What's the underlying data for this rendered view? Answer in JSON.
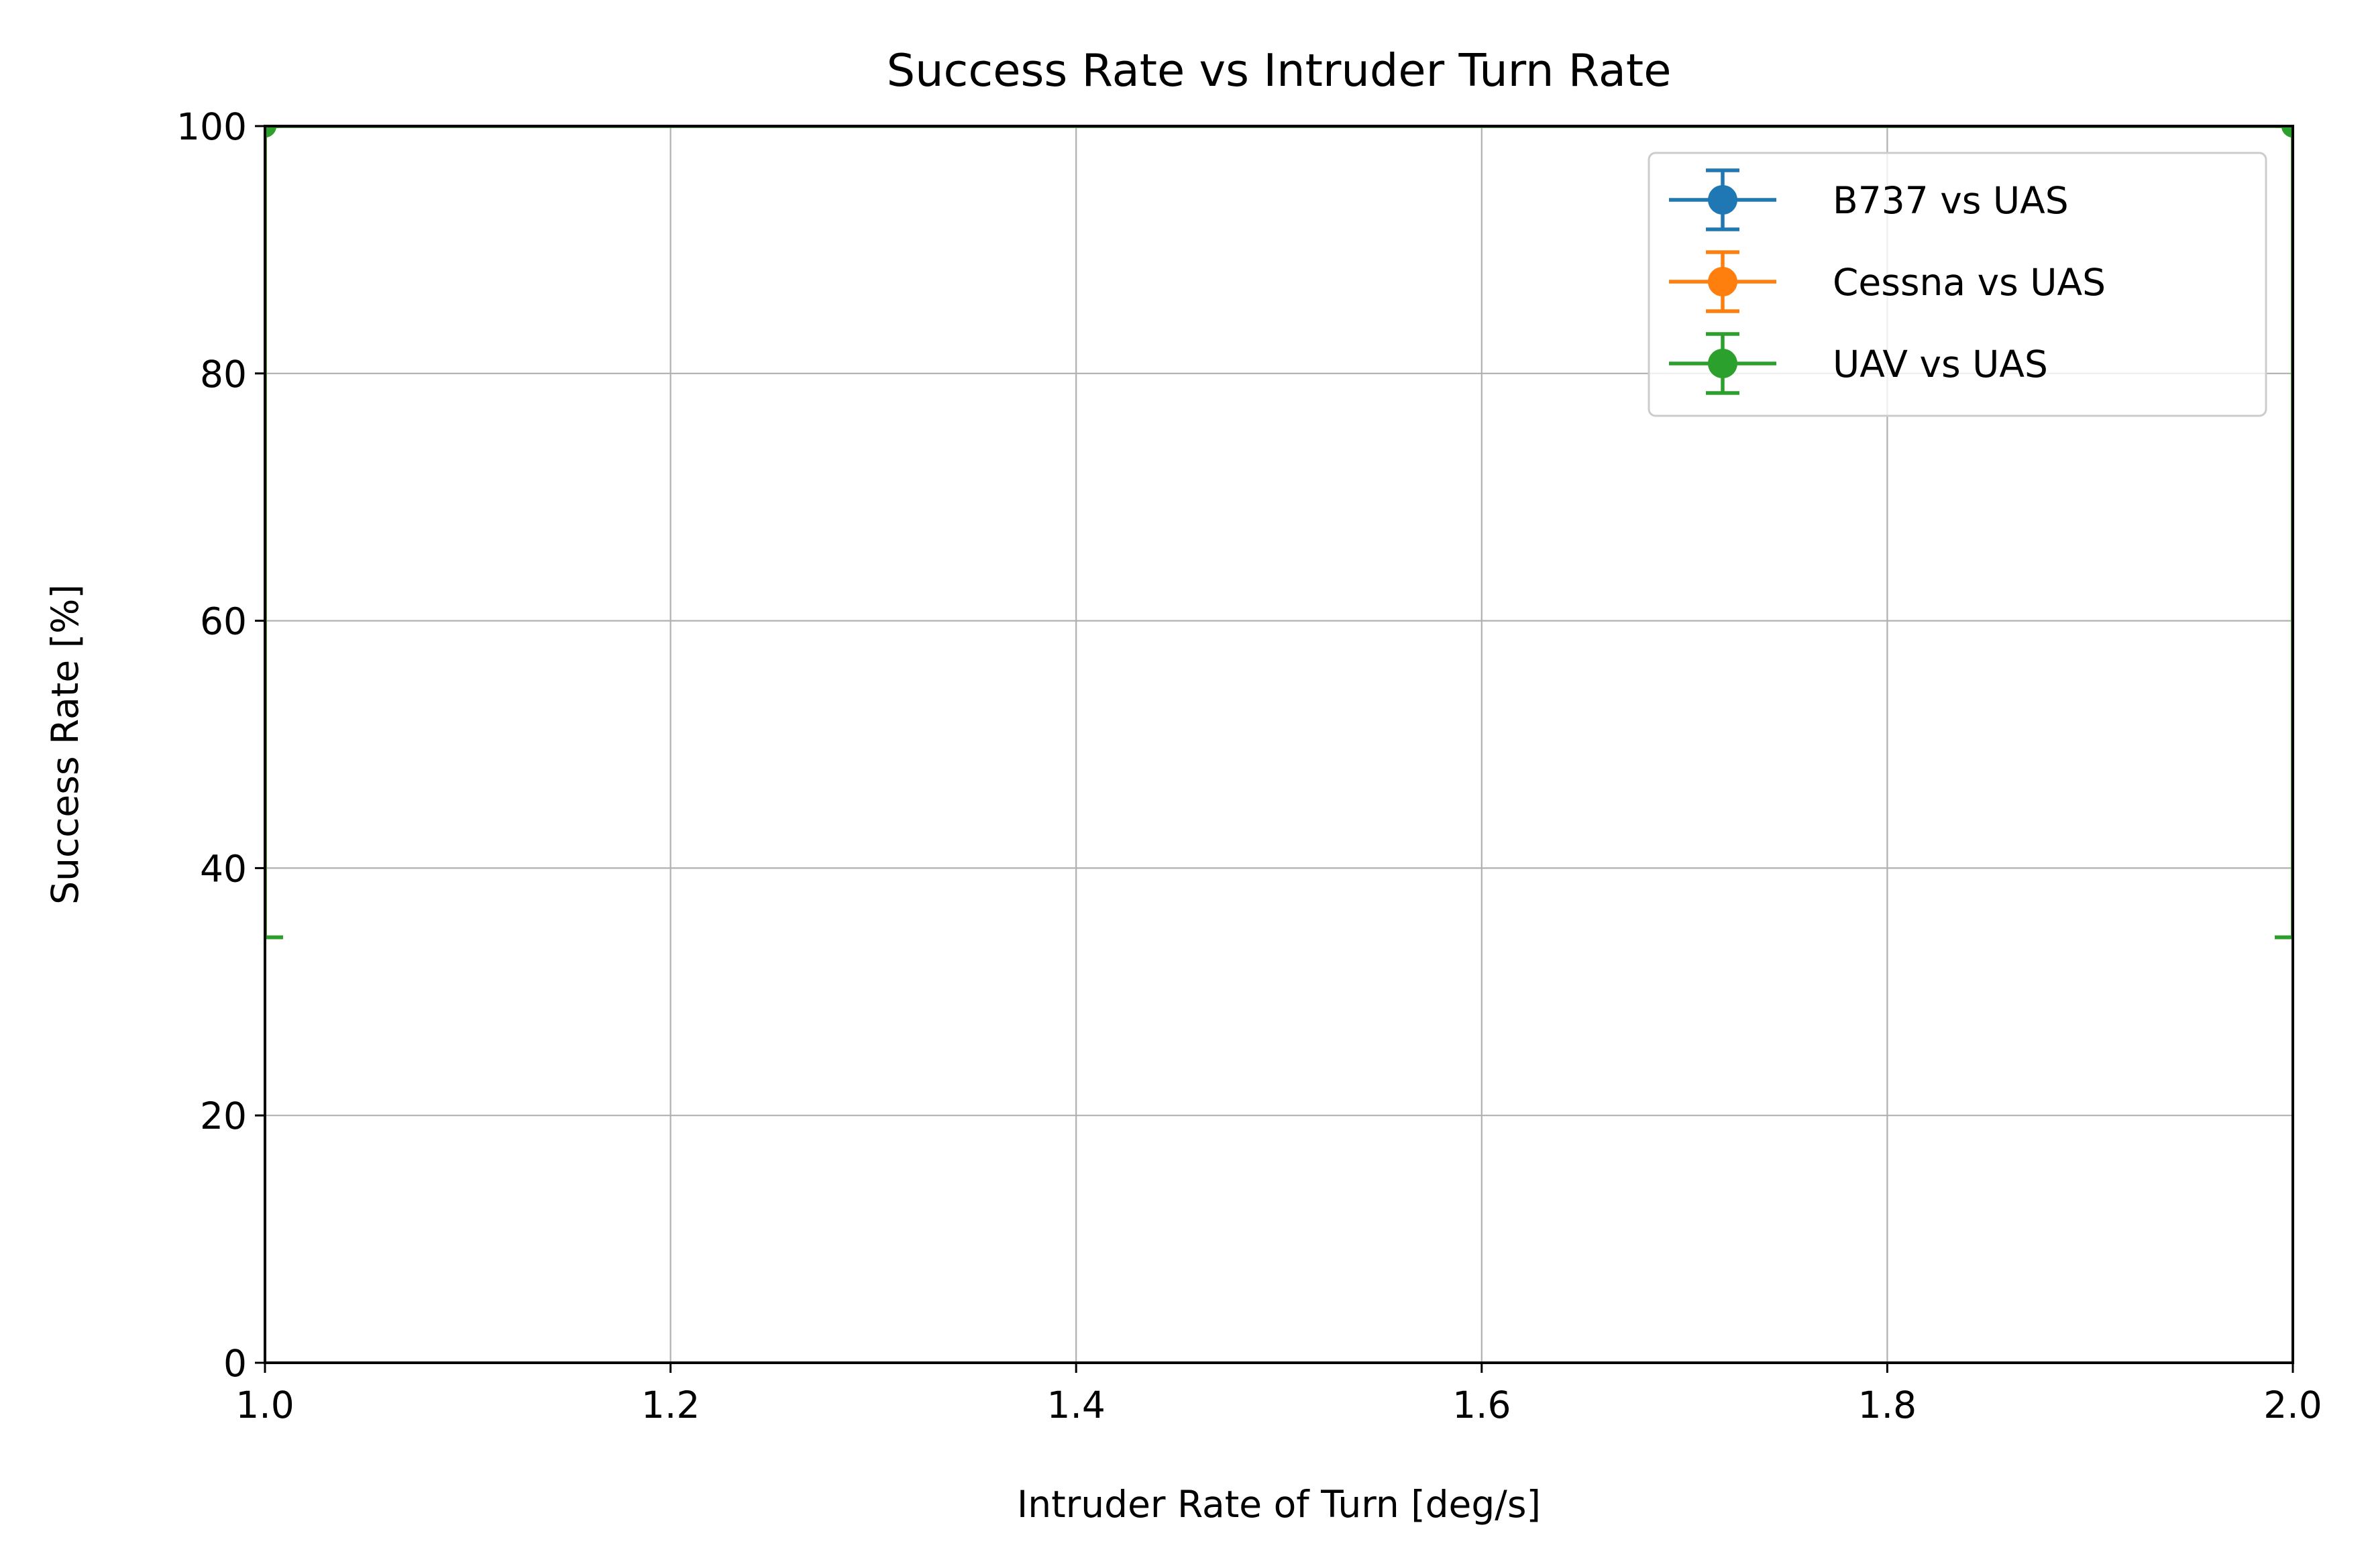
{
  "chart_data": {
    "type": "line",
    "title": "Success Rate vs Intruder Turn Rate",
    "xlabel": "Intruder Rate of Turn [deg/s]",
    "ylabel": "Success Rate [%]",
    "xlim": [
      1.0,
      2.0
    ],
    "ylim": [
      0,
      100
    ],
    "x_ticks": [
      "1.0",
      "1.2",
      "1.4",
      "1.6",
      "1.8",
      "2.0"
    ],
    "y_ticks": [
      "0",
      "20",
      "40",
      "60",
      "80",
      "100"
    ],
    "grid": true,
    "legend_position": "upper right",
    "error_bars": true,
    "series": [
      {
        "name": "B737 vs UAS",
        "color": "#1f77b4",
        "x": [
          1.0,
          2.0
        ],
        "y": [
          100,
          100
        ],
        "error_lower": [
          65.6,
          65.6
        ],
        "error_upper": [
          0,
          0
        ]
      },
      {
        "name": "Cessna vs UAS",
        "color": "#ff7f0e",
        "x": [
          1.0,
          2.0
        ],
        "y": [
          100,
          100
        ],
        "error_lower": [
          65.6,
          65.6
        ],
        "error_upper": [
          0,
          0
        ]
      },
      {
        "name": "UAV vs UAS",
        "color": "#2ca02c",
        "x": [
          1.0,
          2.0
        ],
        "y": [
          100,
          100
        ],
        "error_lower": [
          65.6,
          65.6
        ],
        "error_upper": [
          0,
          0
        ]
      }
    ]
  }
}
